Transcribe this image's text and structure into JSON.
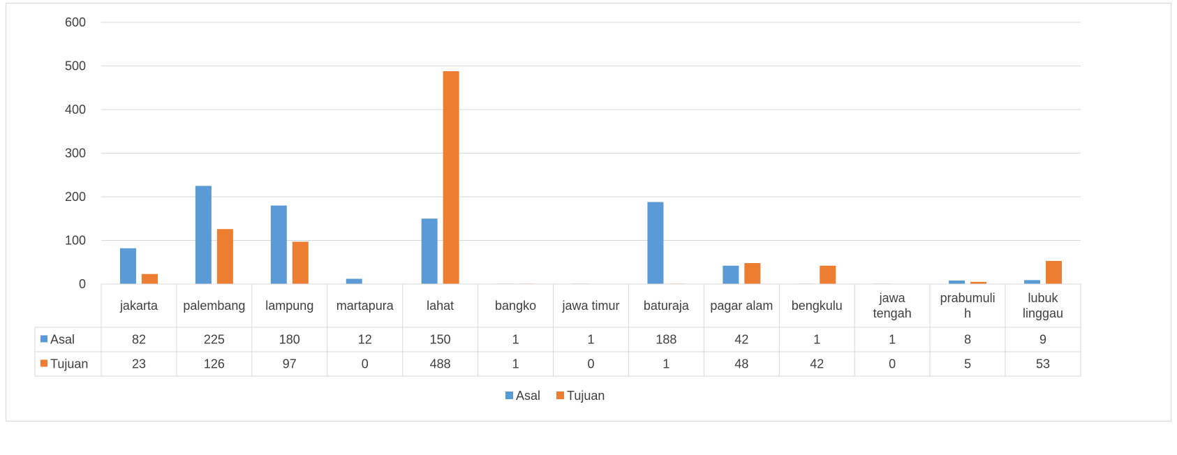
{
  "chart_data": {
    "type": "bar",
    "title": "",
    "xlabel": "",
    "ylabel": "",
    "ylim": [
      0,
      600
    ],
    "yticks": [
      0,
      100,
      200,
      300,
      400,
      500,
      600
    ],
    "grid": true,
    "legend_position": "bottom",
    "categories": [
      [
        "jakarta"
      ],
      [
        "palembang"
      ],
      [
        "lampung"
      ],
      [
        "martapura"
      ],
      [
        "lahat"
      ],
      [
        "bangko"
      ],
      [
        "jawa timur"
      ],
      [
        "baturaja"
      ],
      [
        "pagar alam"
      ],
      [
        "bengkulu"
      ],
      [
        "jawa",
        "tengah"
      ],
      [
        "prabumuli",
        "h"
      ],
      [
        "lubuk",
        "linggau"
      ]
    ],
    "series": [
      {
        "name": "Asal",
        "color": "#5b9bd5",
        "values": [
          82,
          225,
          180,
          12,
          150,
          1,
          1,
          188,
          42,
          1,
          1,
          8,
          9
        ]
      },
      {
        "name": "Tujuan",
        "color": "#ed7d31",
        "values": [
          23,
          126,
          97,
          0,
          488,
          1,
          0,
          1,
          48,
          42,
          0,
          5,
          53
        ]
      }
    ],
    "data_table": true
  }
}
